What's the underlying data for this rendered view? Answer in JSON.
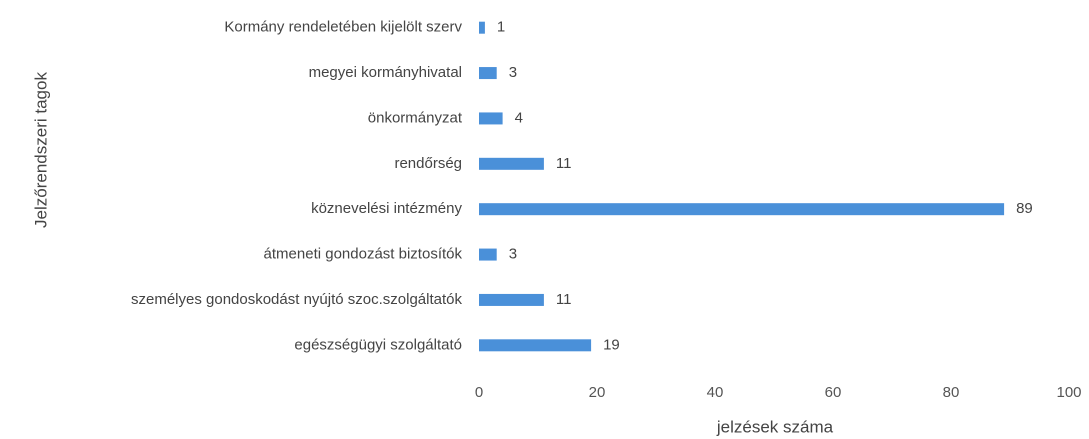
{
  "chart_data": {
    "type": "bar",
    "orientation": "horizontal",
    "x_label": "jelzések száma",
    "y_label": "Jelzőrendszeri tagok",
    "categories": [
      "Kormány rendeletében kijelölt szerv",
      "megyei kormányhivatal",
      "önkormányzat",
      "rendőrség",
      "köznevelési intézmény",
      "átmeneti gondozást biztosítók",
      "személyes gondoskodást nyújtó szoc.szolgáltatók",
      "egészségügyi szolgáltató"
    ],
    "values": [
      1,
      3,
      4,
      11,
      89,
      3,
      11,
      19
    ],
    "color": "#4a90d9",
    "xlim": [
      0,
      100
    ],
    "xticks": [
      0,
      20,
      40,
      60,
      80,
      100
    ],
    "grid": false
  }
}
